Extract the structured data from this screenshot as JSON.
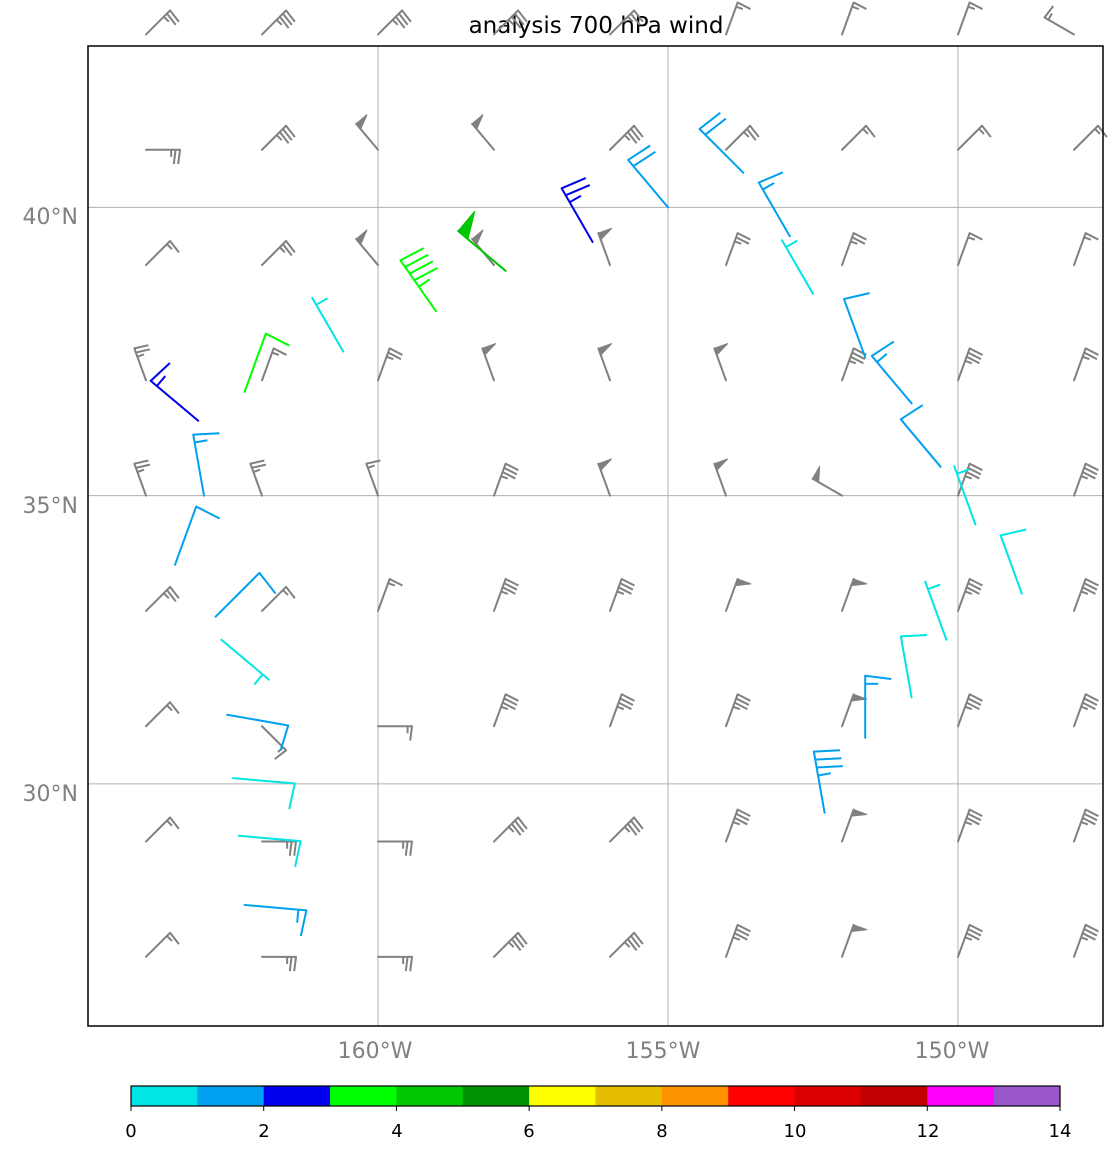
{
  "title": "analysis 700 hPa wind",
  "map": {
    "lon_range": [
      -165,
      -147.5
    ],
    "lat_range": [
      25.8,
      42.8
    ],
    "lon_grid": [
      -160,
      -155,
      -150
    ],
    "lat_grid": [
      30,
      35,
      40
    ],
    "lon_labels": [
      "160°W",
      "155°W",
      "150°W"
    ],
    "lat_labels": [
      "30°N",
      "35°N",
      "40°N"
    ],
    "gridlines": true,
    "background_barb_color": "#808080"
  },
  "colorbar": {
    "ticks": [
      "0",
      "2",
      "4",
      "6",
      "8",
      "10",
      "12",
      "14"
    ],
    "range": [
      0,
      14
    ],
    "colors": [
      "#00e5e5",
      "#00a0f0",
      "#0000f0",
      "#00ff00",
      "#00c800",
      "#009000",
      "#ffff00",
      "#e6be00",
      "#ff9400",
      "#ff0000",
      "#dc0000",
      "#c00000",
      "#ff00ff",
      "#9955cc"
    ]
  },
  "background_barbs": {
    "lons": [
      -164,
      -162,
      -160,
      -158,
      -156,
      -154,
      -152,
      -150,
      -148
    ],
    "lats": [
      43,
      41,
      39,
      37,
      35,
      33,
      31,
      29,
      27
    ],
    "rows": [
      [
        [
          45,
          25
        ],
        [
          45,
          35
        ],
        [
          45,
          35
        ],
        [
          45,
          35
        ],
        [
          45,
          25
        ],
        [
          20,
          15
        ],
        [
          20,
          15
        ],
        [
          20,
          15
        ],
        [
          300,
          15
        ]
      ],
      [
        [
          90,
          25
        ],
        [
          45,
          35
        ],
        [
          320,
          50
        ],
        [
          320,
          50
        ],
        [
          45,
          35
        ],
        [
          45,
          25
        ],
        [
          45,
          15
        ],
        [
          45,
          15
        ],
        [
          45,
          15
        ]
      ],
      [
        [
          45,
          15
        ],
        [
          45,
          25
        ],
        [
          320,
          50
        ],
        [
          320,
          50
        ],
        [
          340,
          50
        ],
        [
          20,
          25
        ],
        [
          20,
          25
        ],
        [
          20,
          15
        ],
        [
          20,
          15
        ]
      ],
      [
        [
          340,
          25
        ],
        [
          20,
          15
        ],
        [
          20,
          25
        ],
        [
          340,
          50
        ],
        [
          340,
          50
        ],
        [
          340,
          50
        ],
        [
          20,
          35
        ],
        [
          20,
          35
        ],
        [
          20,
          25
        ]
      ],
      [
        [
          340,
          25
        ],
        [
          340,
          25
        ],
        [
          340,
          15
        ],
        [
          20,
          35
        ],
        [
          340,
          50
        ],
        [
          340,
          50
        ],
        [
          300,
          50
        ],
        [
          20,
          35
        ],
        [
          20,
          35
        ]
      ],
      [
        [
          45,
          25
        ],
        [
          45,
          15
        ],
        [
          20,
          15
        ],
        [
          20,
          35
        ],
        [
          20,
          35
        ],
        [
          20,
          50
        ],
        [
          20,
          50
        ],
        [
          20,
          35
        ],
        [
          20,
          35
        ]
      ],
      [
        [
          45,
          15
        ],
        [
          135,
          15
        ],
        [
          90,
          15
        ],
        [
          20,
          35
        ],
        [
          20,
          35
        ],
        [
          20,
          35
        ],
        [
          20,
          50
        ],
        [
          20,
          35
        ],
        [
          20,
          35
        ]
      ],
      [
        [
          45,
          15
        ],
        [
          90,
          25
        ],
        [
          90,
          25
        ],
        [
          45,
          35
        ],
        [
          45,
          35
        ],
        [
          20,
          35
        ],
        [
          20,
          50
        ],
        [
          20,
          35
        ],
        [
          20,
          35
        ]
      ],
      [
        [
          45,
          15
        ],
        [
          90,
          25
        ],
        [
          90,
          25
        ],
        [
          45,
          35
        ],
        [
          45,
          35
        ],
        [
          20,
          35
        ],
        [
          20,
          50
        ],
        [
          20,
          35
        ],
        [
          20,
          35
        ]
      ]
    ]
  },
  "trajectory_barbs": [
    {
      "lon": -163.1,
      "lat": 36.3,
      "dir": 310,
      "spd": 1.3,
      "cidx": 2
    },
    {
      "lon": -162.3,
      "lat": 36.8,
      "dir": 20,
      "spd": 0.8,
      "cidx": 3
    },
    {
      "lon": -160.6,
      "lat": 37.5,
      "dir": 330,
      "spd": 0.4,
      "cidx": 0
    },
    {
      "lon": -159.0,
      "lat": 38.2,
      "dir": 325,
      "spd": 4.5,
      "cidx": 3
    },
    {
      "lon": -157.8,
      "lat": 38.9,
      "dir": 310,
      "spd": 4.8,
      "cidx": 4
    },
    {
      "lon": -156.3,
      "lat": 39.4,
      "dir": 330,
      "spd": 2.5,
      "cidx": 2
    },
    {
      "lon": -155.0,
      "lat": 40.0,
      "dir": 320,
      "spd": 2.2,
      "cidx": 1
    },
    {
      "lon": -153.7,
      "lat": 40.6,
      "dir": 315,
      "spd": 1.8,
      "cidx": 1
    },
    {
      "lon": -152.9,
      "lat": 39.5,
      "dir": 330,
      "spd": 1.5,
      "cidx": 1
    },
    {
      "lon": -152.5,
      "lat": 38.5,
      "dir": 330,
      "spd": 0.5,
      "cidx": 0
    },
    {
      "lon": -151.6,
      "lat": 37.4,
      "dir": 340,
      "spd": 1.2,
      "cidx": 1
    },
    {
      "lon": -150.8,
      "lat": 36.6,
      "dir": 320,
      "spd": 1.4,
      "cidx": 1
    },
    {
      "lon": -150.3,
      "lat": 35.5,
      "dir": 320,
      "spd": 1.2,
      "cidx": 1
    },
    {
      "lon": -149.7,
      "lat": 34.5,
      "dir": 340,
      "spd": 0.6,
      "cidx": 0
    },
    {
      "lon": -148.9,
      "lat": 33.3,
      "dir": 340,
      "spd": 0.8,
      "cidx": 0
    },
    {
      "lon": -150.2,
      "lat": 32.5,
      "dir": 340,
      "spd": 0.7,
      "cidx": 0
    },
    {
      "lon": -150.8,
      "lat": 31.5,
      "dir": 350,
      "spd": 0.8,
      "cidx": 0
    },
    {
      "lon": -151.6,
      "lat": 30.8,
      "dir": 0,
      "spd": 1.3,
      "cidx": 1
    },
    {
      "lon": -152.3,
      "lat": 29.5,
      "dir": 350,
      "spd": 3.5,
      "cidx": 1
    },
    {
      "lon": -163.0,
      "lat": 35.0,
      "dir": 350,
      "spd": 1.5,
      "cidx": 1
    },
    {
      "lon": -163.5,
      "lat": 33.8,
      "dir": 20,
      "spd": 1.2,
      "cidx": 1
    },
    {
      "lon": -162.8,
      "lat": 32.9,
      "dir": 45,
      "spd": 1.2,
      "cidx": 1
    },
    {
      "lon": -162.7,
      "lat": 32.5,
      "dir": 130,
      "spd": 0.5,
      "cidx": 0
    },
    {
      "lon": -162.6,
      "lat": 31.2,
      "dir": 100,
      "spd": 1.2,
      "cidx": 1
    },
    {
      "lon": -162.5,
      "lat": 30.1,
      "dir": 95,
      "spd": 0.8,
      "cidx": 0
    },
    {
      "lon": -162.4,
      "lat": 29.1,
      "dir": 95,
      "spd": 0.8,
      "cidx": 0
    },
    {
      "lon": -162.3,
      "lat": 27.9,
      "dir": 95,
      "spd": 1.5,
      "cidx": 1
    }
  ]
}
